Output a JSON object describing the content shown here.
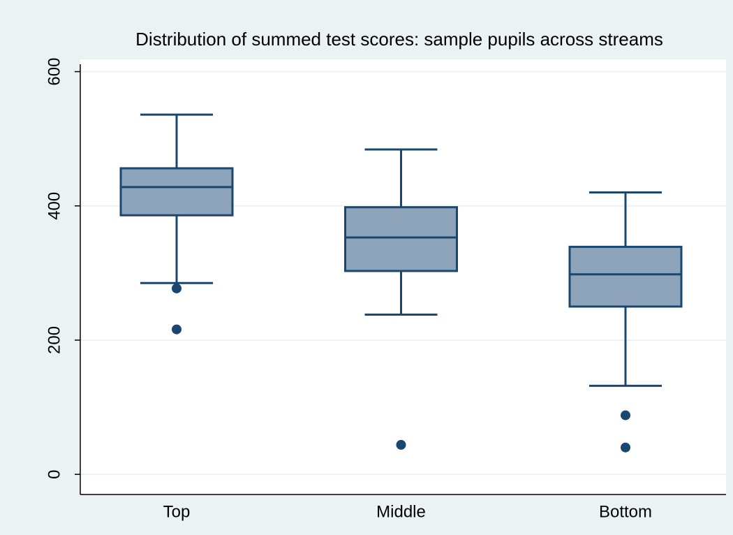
{
  "chart_data": {
    "type": "box",
    "title": "Distribution of summed test scores: sample pupils across streams",
    "categories": [
      "Top",
      "Middle",
      "Bottom"
    ],
    "boxes": [
      {
        "whisker_low": 285,
        "q1": 386,
        "median": 428,
        "q3": 456,
        "whisker_high": 536,
        "outliers": [
          277,
          216
        ]
      },
      {
        "whisker_low": 238,
        "q1": 303,
        "median": 353,
        "q3": 398,
        "whisker_high": 484,
        "outliers": [
          44
        ]
      },
      {
        "whisker_low": 132,
        "q1": 250,
        "median": 298,
        "q3": 339,
        "whisker_high": 420,
        "outliers": [
          88,
          40
        ]
      }
    ],
    "color": "#8ea4bb",
    "line_color": "#1a476f",
    "ylim": [
      -30,
      611
    ],
    "yticks": [
      0,
      200,
      400,
      600
    ],
    "grid": true
  }
}
